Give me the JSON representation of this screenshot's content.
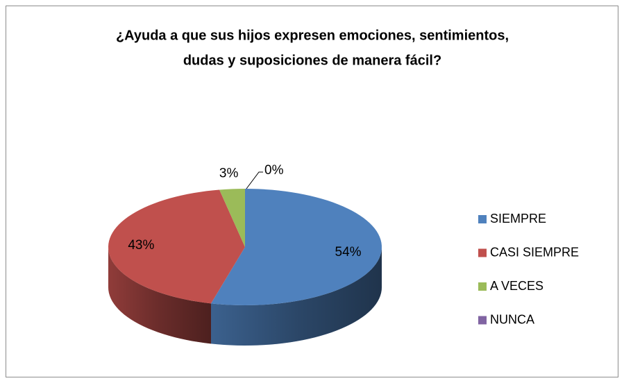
{
  "chart_data": {
    "type": "pie",
    "title": [
      "¿Ayuda a que sus hijos expresen emociones, sentimientos,",
      "dudas y suposiciones de manera fácil?"
    ],
    "categories": [
      "SIEMPRE",
      "CASI SIEMPRE",
      "A VECES",
      "NUNCA"
    ],
    "values": [
      54,
      43,
      3,
      0
    ],
    "value_labels": [
      "54%",
      "43%",
      "3%",
      "0%"
    ],
    "colors": [
      "#4f81bd",
      "#c0504d",
      "#9bbb59",
      "#8064a2"
    ],
    "legend": "right"
  }
}
